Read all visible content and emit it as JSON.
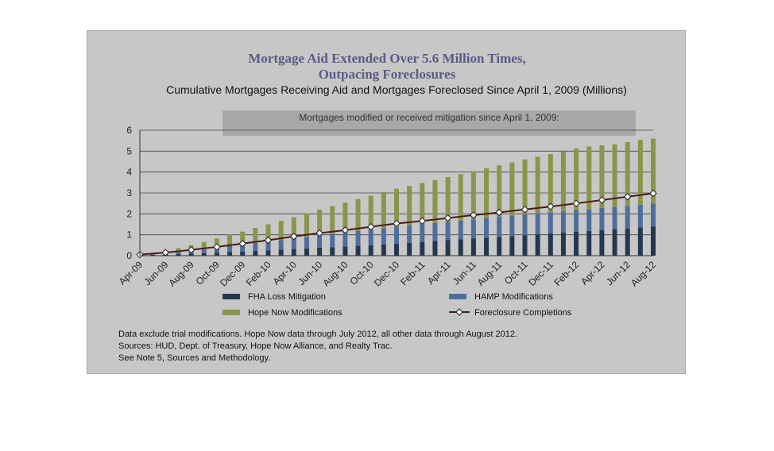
{
  "chart_data": {
    "type": "bar",
    "title_line1": "Mortgage Aid Extended Over 5.6 Million Times,",
    "title_line2": "Outpacing Foreclosures",
    "subtitle": "Cumulative Mortgages Receiving Aid and Mortgages Foreclosed Since April 1, 2009 (Millions)",
    "callout": "Mortgages modified or received mitigation since April 1, 2009:",
    "ylim": [
      0,
      6
    ],
    "yticks": [
      "0",
      "1",
      "2",
      "3",
      "4",
      "5",
      "6"
    ],
    "grid": true,
    "x_tick_labels": [
      "Apr-09",
      "Jun-09",
      "Aug-09",
      "Oct-09",
      "Dec-09",
      "Feb-10",
      "Apr-10",
      "Jun-10",
      "Aug-10",
      "Oct-10",
      "Dec-10",
      "Feb-11",
      "Apr-11",
      "Jun-11",
      "Aug-11",
      "Oct-11",
      "Dec-11",
      "Feb-12",
      "Apr-12",
      "Jun-12",
      "Aug-12"
    ],
    "categories": [
      "Apr-09",
      "May-09",
      "Jun-09",
      "Jul-09",
      "Aug-09",
      "Sep-09",
      "Oct-09",
      "Nov-09",
      "Dec-09",
      "Jan-10",
      "Feb-10",
      "Mar-10",
      "Apr-10",
      "May-10",
      "Jun-10",
      "Jul-10",
      "Aug-10",
      "Sep-10",
      "Oct-10",
      "Nov-10",
      "Dec-10",
      "Jan-11",
      "Feb-11",
      "Mar-11",
      "Apr-11",
      "May-11",
      "Jun-11",
      "Jul-11",
      "Aug-11",
      "Sep-11",
      "Oct-11",
      "Nov-11",
      "Dec-11",
      "Jan-12",
      "Feb-12",
      "Mar-12",
      "Apr-12",
      "May-12",
      "Jun-12",
      "Jul-12",
      "Aug-12"
    ],
    "series": [
      {
        "name": "FHA Loss Mitigation",
        "kind": "bar",
        "color": "#23384f",
        "values": [
          0.02,
          0.04,
          0.06,
          0.08,
          0.1,
          0.12,
          0.15,
          0.18,
          0.2,
          0.23,
          0.26,
          0.29,
          0.32,
          0.35,
          0.38,
          0.41,
          0.44,
          0.47,
          0.5,
          0.54,
          0.58,
          0.62,
          0.66,
          0.7,
          0.74,
          0.78,
          0.82,
          0.86,
          0.9,
          0.94,
          0.98,
          1.02,
          1.06,
          1.1,
          1.14,
          1.18,
          1.22,
          1.26,
          1.3,
          1.35,
          1.4
        ]
      },
      {
        "name": "HAMP Modifications",
        "kind": "bar",
        "color": "#4f6d9c",
        "values": [
          0.0,
          0.02,
          0.05,
          0.08,
          0.12,
          0.17,
          0.22,
          0.28,
          0.33,
          0.38,
          0.42,
          0.46,
          0.5,
          0.55,
          0.6,
          0.64,
          0.68,
          0.72,
          0.75,
          0.78,
          0.8,
          0.82,
          0.84,
          0.86,
          0.88,
          0.9,
          0.92,
          0.94,
          0.96,
          0.98,
          1.0,
          1.01,
          1.02,
          1.03,
          1.04,
          1.05,
          1.06,
          1.07,
          1.08,
          1.09,
          1.1
        ]
      },
      {
        "name": "Hope Now Modifications",
        "kind": "bar",
        "color": "#8a954a",
        "values": [
          0.03,
          0.08,
          0.14,
          0.2,
          0.28,
          0.36,
          0.45,
          0.54,
          0.62,
          0.72,
          0.82,
          0.92,
          1.02,
          1.12,
          1.22,
          1.32,
          1.42,
          1.52,
          1.62,
          1.72,
          1.82,
          1.9,
          1.98,
          2.06,
          2.14,
          2.22,
          2.3,
          2.38,
          2.46,
          2.54,
          2.62,
          2.7,
          2.78,
          2.86,
          2.94,
          3.0,
          3.0,
          3.0,
          3.05,
          3.1,
          3.1
        ]
      },
      {
        "name": "Foreclosure Completions",
        "kind": "line",
        "color": "#4a1a1a",
        "values": [
          0.05,
          0.1,
          0.15,
          0.21,
          0.28,
          0.35,
          0.42,
          0.5,
          0.58,
          0.66,
          0.74,
          0.83,
          0.92,
          1.0,
          1.08,
          1.15,
          1.22,
          1.3,
          1.38,
          1.46,
          1.54,
          1.6,
          1.66,
          1.73,
          1.8,
          1.87,
          1.94,
          2.0,
          2.07,
          2.14,
          2.21,
          2.28,
          2.35,
          2.42,
          2.5,
          2.58,
          2.66,
          2.74,
          2.82,
          2.9,
          2.98
        ]
      }
    ],
    "legend": [
      "FHA Loss Mitigation",
      "HAMP Modifications",
      "Hope Now Modifications",
      "Foreclosure Completions"
    ],
    "legend_position": "bottom"
  },
  "notes": {
    "line1": "Data exclude trial modifications. Hope Now data through July 2012, all other data through August 2012.",
    "line2": "Sources:  HUD, Dept. of Treasury, Hope Now Alliance, and Realty Trac.",
    "line3": "See Note 5, Sources and Methodology."
  }
}
